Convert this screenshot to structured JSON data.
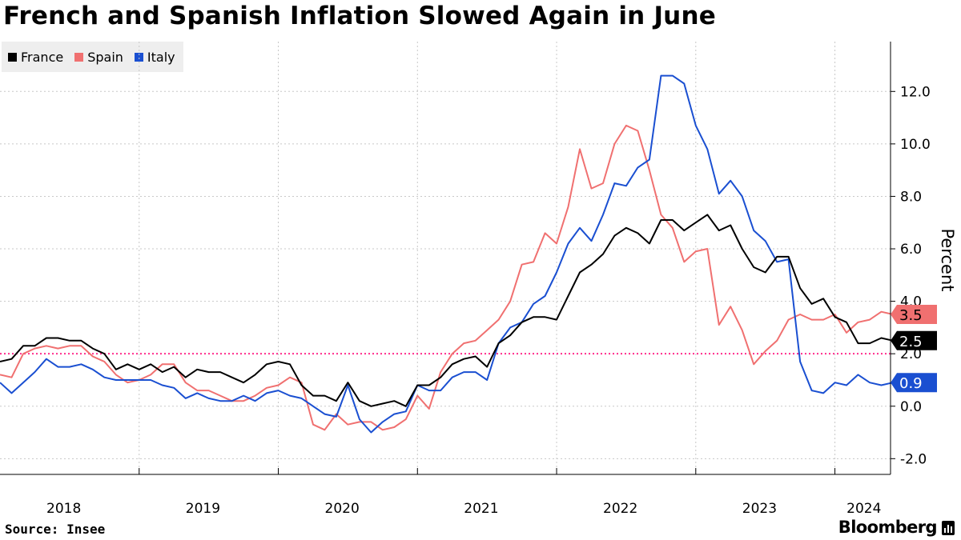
{
  "title": "French and Spanish Inflation Slowed Again in June",
  "source": "Source: Insee",
  "brand": "Bloomberg",
  "chart_data": {
    "type": "line",
    "title": "French and Spanish Inflation Slowed Again in June",
    "ylabel": "Percent",
    "xlabel": "",
    "x_start": "2018-01",
    "x_end": "2024-06",
    "x_ticks": [
      "2018",
      "2019",
      "2020",
      "2021",
      "2022",
      "2023",
      "2024"
    ],
    "y_ticks": [
      "-2.0",
      "0.0",
      "2.0",
      "4.0",
      "6.0",
      "8.0",
      "10.0",
      "12.0"
    ],
    "ylim": [
      -2.6,
      13.9
    ],
    "grid": true,
    "legend_position": "top-left",
    "reference_line": {
      "value": 2.0,
      "color": "#ff2d8c",
      "style": "dotted"
    },
    "series": [
      {
        "name": "France",
        "color": "#000000",
        "last_label": "2.5",
        "values": [
          1.7,
          1.8,
          2.3,
          2.3,
          2.6,
          2.6,
          2.5,
          2.5,
          2.2,
          2.0,
          1.4,
          1.6,
          1.4,
          1.6,
          1.3,
          1.5,
          1.1,
          1.4,
          1.3,
          1.3,
          1.1,
          0.9,
          1.2,
          1.6,
          1.7,
          1.6,
          0.8,
          0.4,
          0.4,
          0.2,
          0.9,
          0.2,
          0.0,
          0.1,
          0.2,
          0.0,
          0.8,
          0.8,
          1.1,
          1.6,
          1.8,
          1.9,
          1.5,
          2.4,
          2.7,
          3.2,
          3.4,
          3.4,
          3.3,
          4.2,
          5.1,
          5.4,
          5.8,
          6.5,
          6.8,
          6.6,
          6.2,
          7.1,
          7.1,
          6.7,
          7.0,
          7.3,
          6.7,
          6.9,
          6.0,
          5.3,
          5.1,
          5.7,
          5.7,
          4.5,
          3.9,
          4.1,
          3.4,
          3.2,
          2.4,
          2.4,
          2.6,
          2.5
        ]
      },
      {
        "name": "Spain",
        "color": "#f07070",
        "last_label": "3.5",
        "values": [
          1.2,
          1.1,
          2.0,
          2.2,
          2.3,
          2.2,
          2.3,
          2.3,
          1.9,
          1.7,
          1.2,
          0.9,
          1.0,
          1.2,
          1.6,
          1.6,
          0.9,
          0.6,
          0.6,
          0.4,
          0.2,
          0.2,
          0.4,
          0.7,
          0.8,
          1.1,
          0.9,
          -0.7,
          -0.9,
          -0.3,
          -0.7,
          -0.6,
          -0.6,
          -0.9,
          -0.8,
          -0.5,
          0.4,
          -0.1,
          1.3,
          2.0,
          2.4,
          2.5,
          2.9,
          3.3,
          4.0,
          5.4,
          5.5,
          6.6,
          6.2,
          7.6,
          9.8,
          8.3,
          8.5,
          10.0,
          10.7,
          10.5,
          9.0,
          7.3,
          6.8,
          5.5,
          5.9,
          6.0,
          3.1,
          3.8,
          2.9,
          1.6,
          2.1,
          2.5,
          3.3,
          3.5,
          3.3,
          3.3,
          3.5,
          2.8,
          3.2,
          3.3,
          3.6,
          3.5
        ]
      },
      {
        "name": "Italy",
        "color": "#1a4fd1",
        "last_label": "0.9",
        "values": [
          0.9,
          0.5,
          0.9,
          1.3,
          1.8,
          1.5,
          1.5,
          1.6,
          1.4,
          1.1,
          1.0,
          1.0,
          1.0,
          1.0,
          0.8,
          0.7,
          0.3,
          0.5,
          0.3,
          0.2,
          0.2,
          0.4,
          0.2,
          0.5,
          0.6,
          0.4,
          0.3,
          0.0,
          -0.3,
          -0.4,
          0.8,
          -0.5,
          -1.0,
          -0.6,
          -0.3,
          -0.2,
          0.8,
          0.6,
          0.6,
          1.1,
          1.3,
          1.3,
          1.0,
          2.4,
          3.0,
          3.2,
          3.9,
          4.2,
          5.1,
          6.2,
          6.8,
          6.3,
          7.3,
          8.5,
          8.4,
          9.1,
          9.4,
          12.6,
          12.6,
          12.3,
          10.7,
          9.8,
          8.1,
          8.6,
          8.0,
          6.7,
          6.3,
          5.5,
          5.6,
          1.7,
          0.6,
          0.5,
          0.9,
          0.8,
          1.2,
          0.9,
          0.8,
          0.9
        ]
      }
    ]
  }
}
